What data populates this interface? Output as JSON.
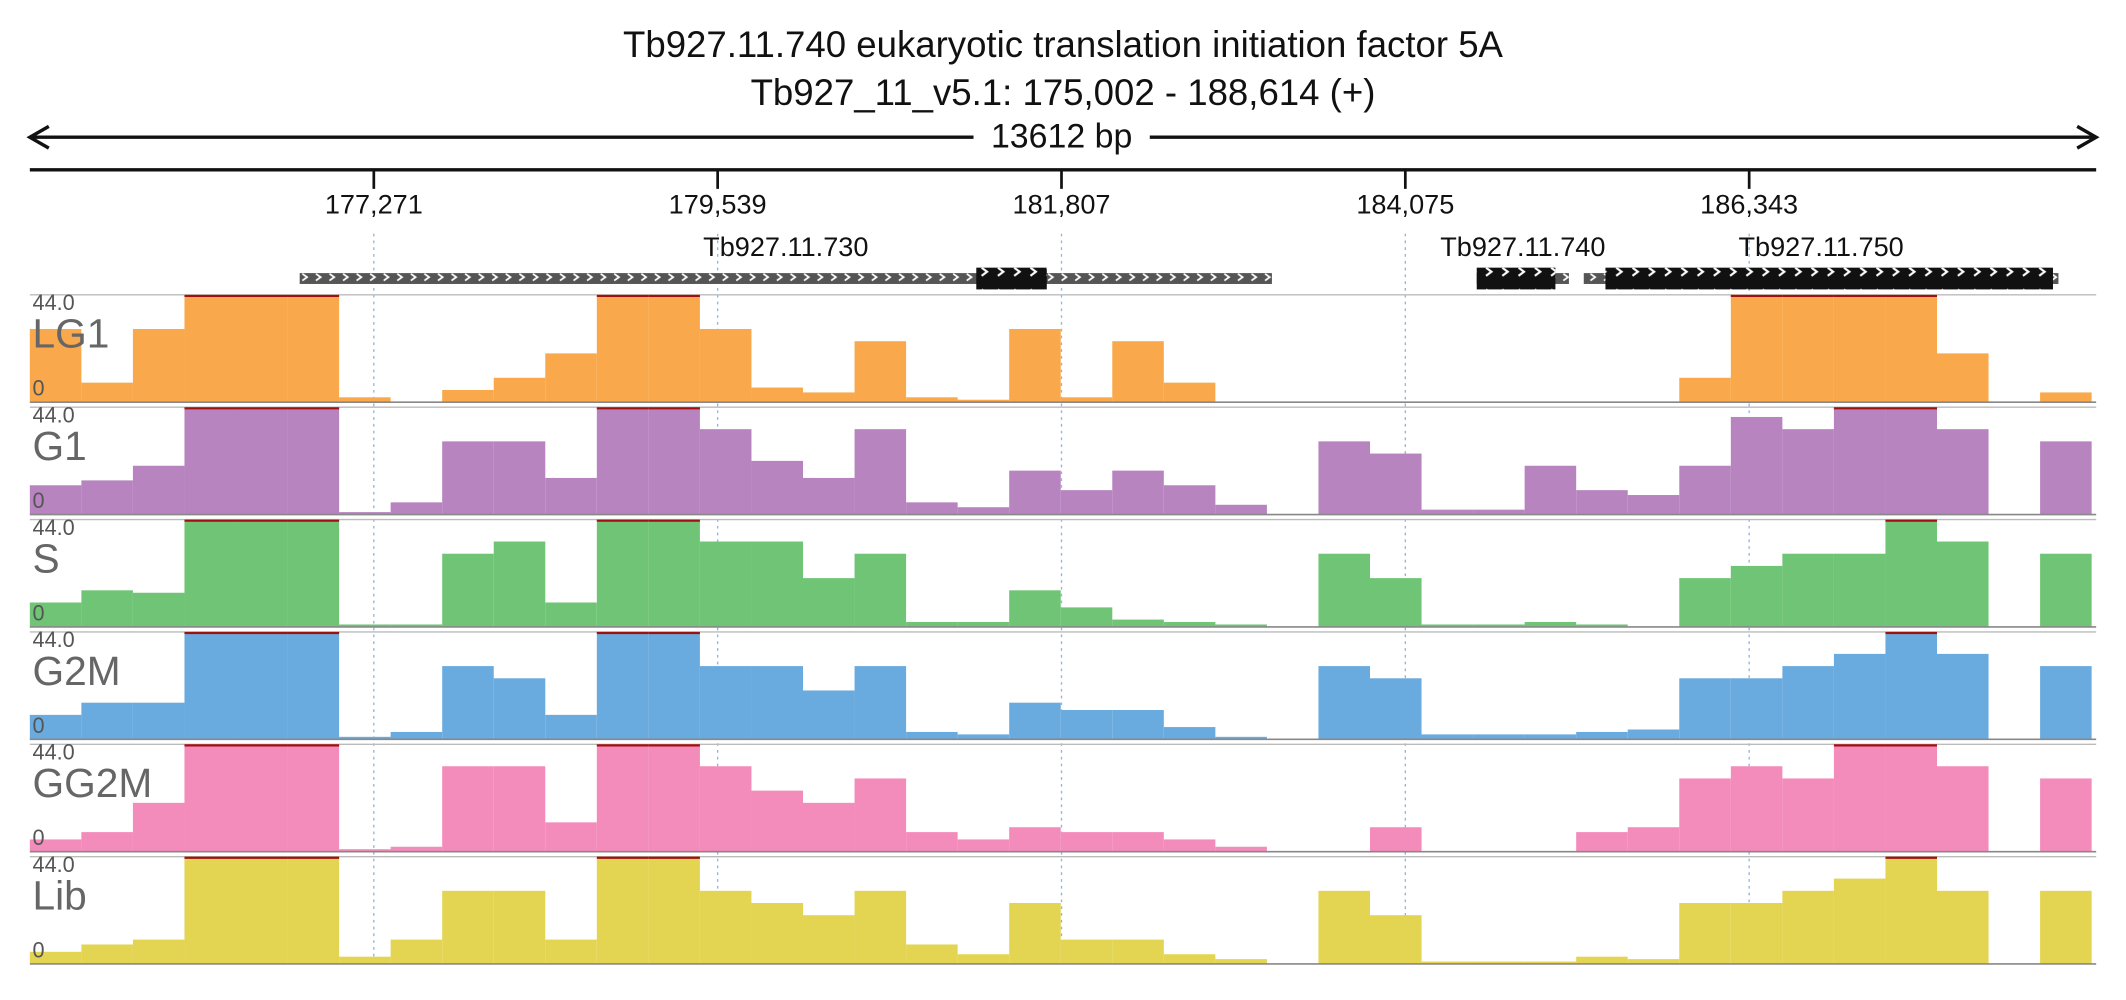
{
  "title": "Tb927.11.740  eukaryotic translation initiation factor 5A",
  "subtitle": "Tb927_11_v5.1: 175,002 - 188,614 (+)",
  "ruler": {
    "span_label": "13612 bp",
    "xlim": [
      175002,
      188614
    ],
    "xticks": [
      {
        "value": 177271,
        "label": "177,271"
      },
      {
        "value": 179539,
        "label": "179,539"
      },
      {
        "value": 181807,
        "label": "181,807"
      },
      {
        "value": 184075,
        "label": "184,075"
      },
      {
        "value": 186343,
        "label": "186,343"
      }
    ]
  },
  "genes": [
    {
      "name": "Tb927.11.730",
      "start": 176782,
      "end": 183195,
      "cds_start": 181245,
      "cds_end": 181710
    },
    {
      "name": "Tb927.11.740",
      "start": 184546,
      "end": 185154,
      "cds_start": 184546,
      "cds_end": 185065
    },
    {
      "name": "Tb927.11.750",
      "start": 185252,
      "end": 188383,
      "cds_start": 185395,
      "cds_end": 188347
    }
  ],
  "bins": [
    175002,
    175342,
    175682,
    176022,
    176362,
    176702,
    177042,
    177382,
    177722,
    178062,
    178402,
    178742,
    179082,
    179422,
    179762,
    180102,
    180442,
    180782,
    181122,
    181462,
    181802,
    182142,
    182482,
    182822,
    183162,
    183502,
    183842,
    184182,
    184522,
    184862,
    185202,
    185542,
    185882,
    186222,
    186562,
    186902,
    187242,
    187582,
    187922,
    188262,
    188602
  ],
  "chart_data": [
    {
      "type": "bar",
      "title": "LG1",
      "color": "#f9a94b",
      "ylim": [
        0,
        44
      ],
      "yticks": [
        0,
        {
          "value": 44,
          "label": "44.0"
        }
      ],
      "values": [
        30,
        8,
        30,
        44,
        44,
        44,
        2,
        0,
        5,
        10,
        20,
        44,
        44,
        30,
        6,
        4,
        25,
        2,
        1,
        30,
        2,
        25,
        8,
        0,
        0,
        0,
        0,
        0,
        0,
        0,
        0,
        0,
        10,
        44,
        44,
        44,
        44,
        20,
        0,
        4
      ]
    },
    {
      "type": "bar",
      "title": "G1",
      "color": "#b784c0",
      "ylim": [
        0,
        44
      ],
      "yticks": [
        0,
        {
          "value": 44,
          "label": "44.0"
        }
      ],
      "values": [
        12,
        14,
        20,
        44,
        44,
        44,
        1,
        5,
        30,
        30,
        15,
        44,
        44,
        35,
        22,
        15,
        35,
        5,
        3,
        18,
        10,
        18,
        12,
        4,
        0,
        30,
        25,
        2,
        2,
        20,
        10,
        8,
        20,
        40,
        35,
        44,
        44,
        35,
        0,
        30
      ]
    },
    {
      "type": "bar",
      "title": "S",
      "color": "#6fc575",
      "ylim": [
        0,
        44
      ],
      "yticks": [
        0,
        {
          "value": 44,
          "label": "44.0"
        }
      ],
      "values": [
        10,
        15,
        14,
        44,
        44,
        44,
        1,
        1,
        30,
        35,
        10,
        44,
        44,
        35,
        35,
        20,
        30,
        2,
        2,
        15,
        8,
        3,
        2,
        1,
        0,
        30,
        20,
        1,
        1,
        2,
        1,
        0,
        20,
        25,
        30,
        30,
        44,
        35,
        0,
        30
      ]
    },
    {
      "type": "bar",
      "title": "G2M",
      "color": "#6aabdf",
      "ylim": [
        0,
        44
      ],
      "yticks": [
        0,
        {
          "value": 44,
          "label": "44.0"
        }
      ],
      "values": [
        10,
        15,
        15,
        44,
        44,
        44,
        1,
        3,
        30,
        25,
        10,
        44,
        44,
        30,
        30,
        20,
        30,
        3,
        2,
        15,
        12,
        12,
        5,
        1,
        0,
        30,
        25,
        2,
        2,
        2,
        3,
        4,
        25,
        25,
        30,
        35,
        44,
        35,
        0,
        30
      ]
    },
    {
      "type": "bar",
      "title": "GG2M",
      "color": "#f38bbb",
      "ylim": [
        0,
        44
      ],
      "yticks": [
        0,
        {
          "value": 44,
          "label": "44.0"
        }
      ],
      "values": [
        5,
        8,
        20,
        44,
        44,
        44,
        1,
        2,
        35,
        35,
        12,
        44,
        44,
        35,
        25,
        20,
        30,
        8,
        5,
        10,
        8,
        8,
        5,
        2,
        0,
        0,
        10,
        0,
        0,
        0,
        8,
        10,
        30,
        35,
        30,
        44,
        44,
        35,
        0,
        30
      ]
    },
    {
      "type": "bar",
      "title": "Lib",
      "color": "#e3d552",
      "ylim": [
        0,
        44
      ],
      "yticks": [
        0,
        {
          "value": 44,
          "label": "44.0"
        }
      ],
      "values": [
        5,
        8,
        10,
        44,
        44,
        44,
        3,
        10,
        30,
        30,
        10,
        44,
        44,
        30,
        25,
        20,
        30,
        8,
        4,
        25,
        10,
        10,
        4,
        2,
        0,
        30,
        20,
        1,
        1,
        1,
        3,
        2,
        25,
        25,
        30,
        35,
        44,
        30,
        0,
        30
      ]
    }
  ]
}
